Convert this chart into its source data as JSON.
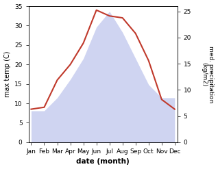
{
  "months": [
    "Jan",
    "Feb",
    "Mar",
    "Apr",
    "May",
    "Jun",
    "Jul",
    "Aug",
    "Sep",
    "Oct",
    "Nov",
    "Dec"
  ],
  "temperature": [
    8.5,
    9.0,
    16.0,
    20.0,
    25.5,
    34.0,
    32.5,
    32.0,
    28.0,
    21.0,
    11.0,
    8.5
  ],
  "precipitation": [
    6.0,
    6.0,
    8.5,
    12.0,
    16.0,
    22.0,
    25.0,
    21.0,
    16.0,
    11.0,
    8.5,
    8.5
  ],
  "temp_color": "#c0392b",
  "precip_color": "#b0b8e8",
  "precip_fill_alpha": 0.6,
  "temp_ylim": [
    0,
    35
  ],
  "precip_ylim": [
    0,
    26
  ],
  "temp_yticks": [
    0,
    5,
    10,
    15,
    20,
    25,
    30,
    35
  ],
  "precip_yticks": [
    0,
    5,
    10,
    15,
    20,
    25
  ],
  "xlabel": "date (month)",
  "ylabel_left": "max temp (C)",
  "ylabel_right": "med. precipitation (kg/m2)",
  "background_color": "#ffffff"
}
